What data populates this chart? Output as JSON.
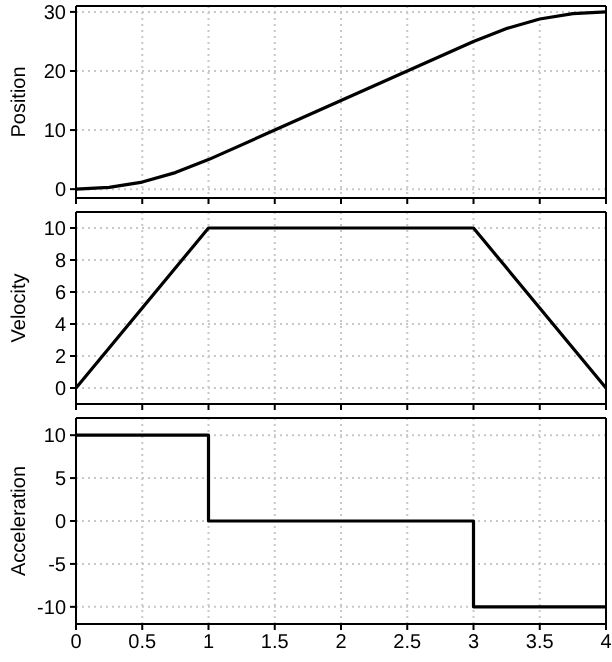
{
  "chart_data": [
    {
      "type": "line",
      "ylabel": "Position",
      "xlim": [
        0,
        4
      ],
      "xticks": [
        0,
        0.5,
        1,
        1.5,
        2,
        2.5,
        3,
        3.5,
        4
      ],
      "ylim": [
        -1.5,
        31
      ],
      "yticks": [
        0,
        10,
        20,
        30
      ],
      "grid": true,
      "tick_labels": "y",
      "marker": "none",
      "line_style": "solid",
      "series": [
        {
          "color": "#000000",
          "x": [
            0,
            0.25,
            0.5,
            0.75,
            1,
            1.5,
            2,
            2.5,
            3,
            3.25,
            3.5,
            3.75,
            4
          ],
          "values": [
            0,
            0.3,
            1.2,
            2.8,
            5,
            10,
            15,
            20,
            25,
            27.2,
            28.8,
            29.7,
            30
          ]
        }
      ]
    },
    {
      "type": "line",
      "ylabel": "Velocity",
      "xlim": [
        0,
        4
      ],
      "xticks": [
        0,
        0.5,
        1,
        1.5,
        2,
        2.5,
        3,
        3.5,
        4
      ],
      "ylim": [
        -1,
        11
      ],
      "yticks": [
        0,
        2,
        4,
        6,
        8,
        10
      ],
      "grid": true,
      "tick_labels": "y",
      "marker": "none",
      "line_style": "solid",
      "series": [
        {
          "color": "#000000",
          "x": [
            0,
            1,
            3,
            4
          ],
          "values": [
            0,
            10,
            10,
            0
          ]
        }
      ]
    },
    {
      "type": "line",
      "ylabel": "Acceleration",
      "xlim": [
        0,
        4
      ],
      "xticks": [
        0,
        0.5,
        1,
        1.5,
        2,
        2.5,
        3,
        3.5,
        4
      ],
      "ylim": [
        -12,
        12
      ],
      "yticks": [
        -10,
        -5,
        0,
        5,
        10
      ],
      "grid": true,
      "marker": "none",
      "line_style": "solid",
      "series": [
        {
          "color": "#000000",
          "x": [
            0,
            1,
            1,
            3,
            3,
            4
          ],
          "values": [
            10,
            10,
            0,
            0,
            -10,
            -10
          ]
        }
      ]
    }
  ]
}
